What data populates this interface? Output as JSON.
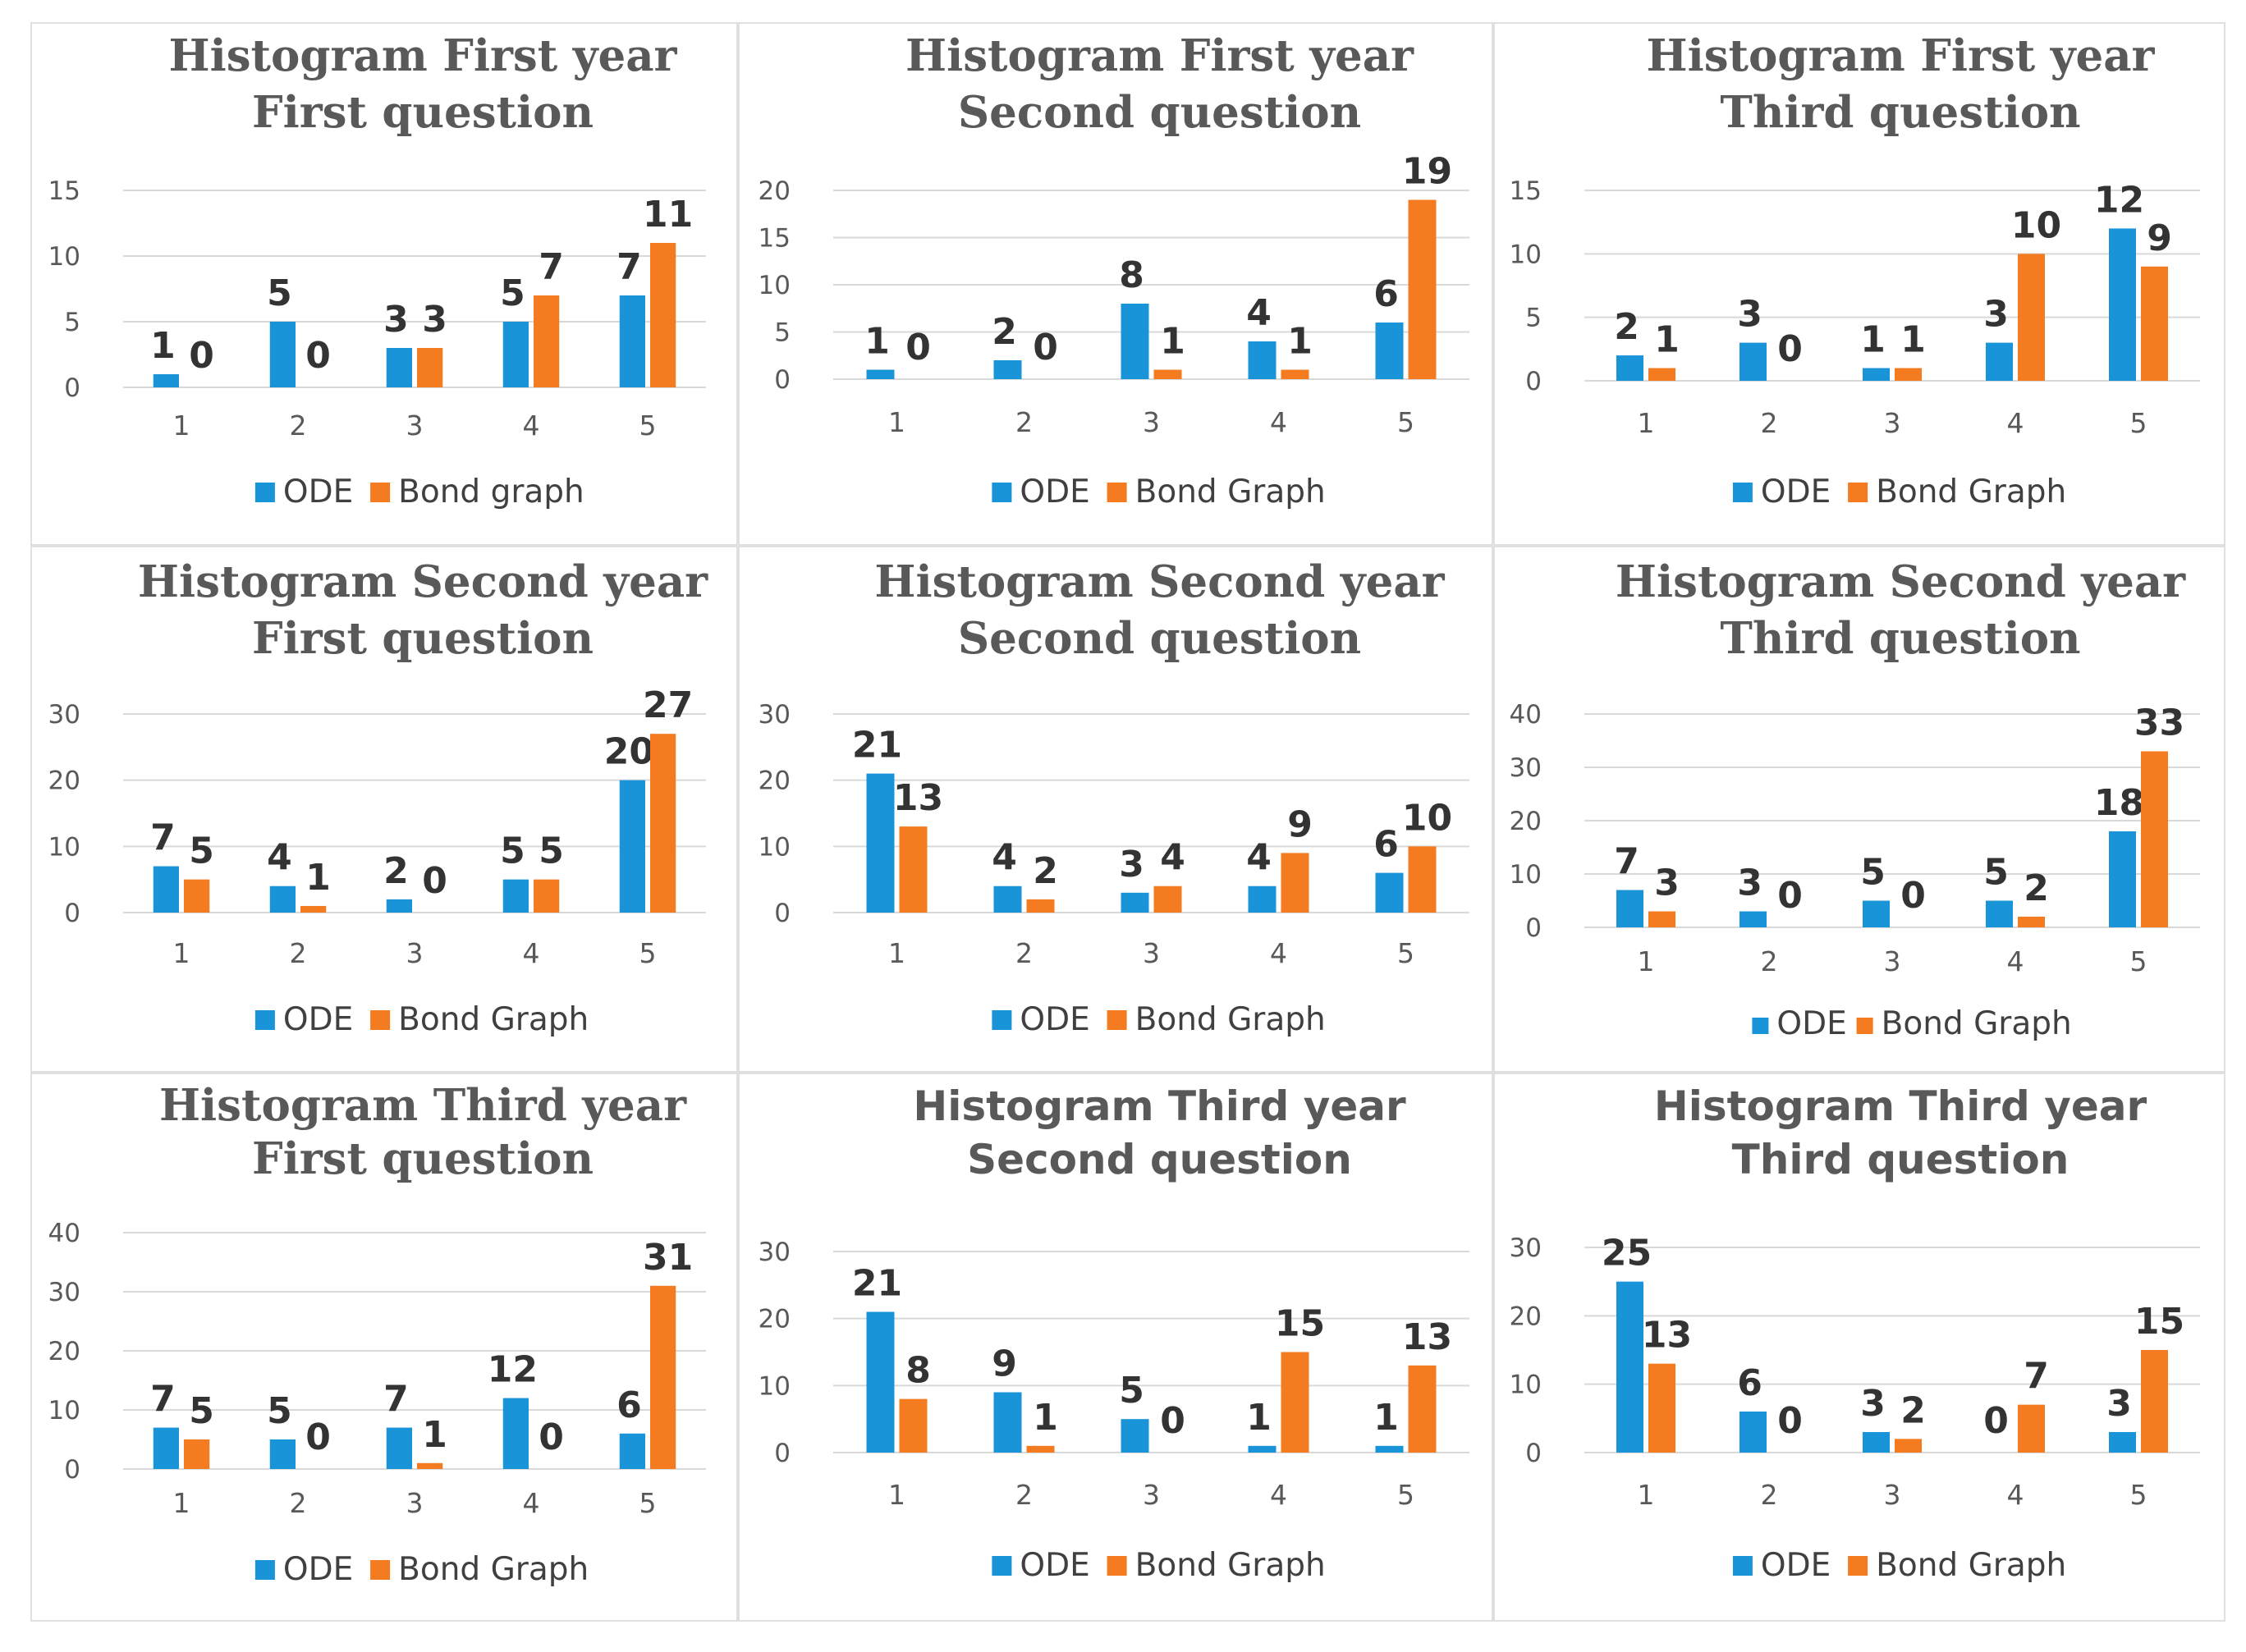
{
  "colors": {
    "ode": "#1a94d8",
    "bond": "#f47b20"
  },
  "chart_data": [
    {
      "type": "bar",
      "title": [
        "Histogram First year",
        "First question"
      ],
      "categories": [
        "1",
        "2",
        "3",
        "4",
        "5"
      ],
      "series": [
        {
          "name": "ODE",
          "values": [
            1,
            5,
            3,
            5,
            7
          ]
        },
        {
          "name": "Bond graph",
          "values": [
            0,
            0,
            3,
            7,
            11
          ]
        }
      ],
      "ylim": [
        0,
        15
      ],
      "yticks": [
        "0",
        "5",
        "10",
        "15"
      ],
      "legend": "bottom"
    },
    {
      "type": "bar",
      "title": [
        "Histogram First year",
        "Second question"
      ],
      "categories": [
        "1",
        "2",
        "3",
        "4",
        "5"
      ],
      "series": [
        {
          "name": "ODE",
          "values": [
            1,
            2,
            8,
            4,
            6
          ]
        },
        {
          "name": "Bond Graph",
          "values": [
            0,
            0,
            1,
            1,
            19
          ]
        }
      ],
      "ylim": [
        0,
        20
      ],
      "yticks": [
        "0",
        "5",
        "10",
        "15",
        "20"
      ],
      "legend": "bottom"
    },
    {
      "type": "bar",
      "title": [
        "Histogram First year",
        "Third question"
      ],
      "categories": [
        "1",
        "2",
        "3",
        "4",
        "5"
      ],
      "series": [
        {
          "name": "ODE",
          "values": [
            2,
            3,
            1,
            3,
            12
          ]
        },
        {
          "name": "Bond Graph",
          "values": [
            1,
            0,
            1,
            10,
            9
          ]
        }
      ],
      "ylim": [
        0,
        15
      ],
      "yticks": [
        "0",
        "5",
        "10",
        "15"
      ],
      "legend": "bottom"
    },
    {
      "type": "bar",
      "title": [
        "Histogram Second year",
        "First question"
      ],
      "categories": [
        "1",
        "2",
        "3",
        "4",
        "5"
      ],
      "series": [
        {
          "name": "ODE",
          "values": [
            7,
            4,
            2,
            5,
            20
          ]
        },
        {
          "name": "Bond Graph",
          "values": [
            5,
            1,
            0,
            5,
            27
          ]
        }
      ],
      "ylim": [
        0,
        30
      ],
      "yticks": [
        "0",
        "10",
        "20",
        "30"
      ],
      "legend": "bottom"
    },
    {
      "type": "bar",
      "title": [
        "Histogram Second year",
        "Second question"
      ],
      "categories": [
        "1",
        "2",
        "3",
        "4",
        "5"
      ],
      "series": [
        {
          "name": "ODE",
          "values": [
            21,
            4,
            3,
            4,
            6
          ]
        },
        {
          "name": "Bond Graph",
          "values": [
            13,
            2,
            4,
            9,
            10
          ]
        }
      ],
      "ylim": [
        0,
        30
      ],
      "yticks": [
        "0",
        "10",
        "20",
        "30"
      ],
      "legend": "bottom"
    },
    {
      "type": "bar",
      "title": [
        "Histogram Second year",
        "Third question"
      ],
      "categories": [
        "1",
        "2",
        "3",
        "4",
        "5"
      ],
      "series": [
        {
          "name": "ODE",
          "values": [
            7,
            3,
            5,
            5,
            18
          ]
        },
        {
          "name": "Bond Graph",
          "values": [
            3,
            0,
            0,
            2,
            33
          ]
        }
      ],
      "ylim": [
        0,
        40
      ],
      "yticks": [
        "0",
        "10",
        "20",
        "30",
        "40"
      ],
      "legend": "bottom"
    },
    {
      "type": "bar",
      "title": [
        "Histogram Third year",
        "First question"
      ],
      "categories": [
        "1",
        "2",
        "3",
        "4",
        "5"
      ],
      "series": [
        {
          "name": "ODE",
          "values": [
            7,
            5,
            7,
            12,
            6
          ]
        },
        {
          "name": "Bond Graph",
          "values": [
            5,
            0,
            1,
            0,
            31
          ]
        }
      ],
      "ylim": [
        0,
        40
      ],
      "yticks": [
        "0",
        "10",
        "20",
        "30",
        "40"
      ],
      "legend": "bottom"
    },
    {
      "type": "bar",
      "title": [
        "Histogram Third year",
        "Second question"
      ],
      "categories": [
        "1",
        "2",
        "3",
        "4",
        "5"
      ],
      "series": [
        {
          "name": "ODE",
          "values": [
            21,
            9,
            5,
            1,
            1
          ]
        },
        {
          "name": "Bond Graph",
          "values": [
            8,
            1,
            0,
            15,
            13
          ]
        }
      ],
      "ylim": [
        0,
        30
      ],
      "yticks": [
        "0",
        "10",
        "20",
        "30"
      ],
      "legend": "bottom"
    },
    {
      "type": "bar",
      "title": [
        "Histogram Third year",
        "Third question"
      ],
      "categories": [
        "1",
        "2",
        "3",
        "4",
        "5"
      ],
      "series": [
        {
          "name": "ODE",
          "values": [
            25,
            6,
            3,
            0,
            3
          ]
        },
        {
          "name": "Bond Graph",
          "values": [
            13,
            0,
            2,
            7,
            15
          ]
        }
      ],
      "ylim": [
        0,
        30
      ],
      "yticks": [
        "0",
        "10",
        "20",
        "30"
      ],
      "legend": "bottom"
    }
  ]
}
